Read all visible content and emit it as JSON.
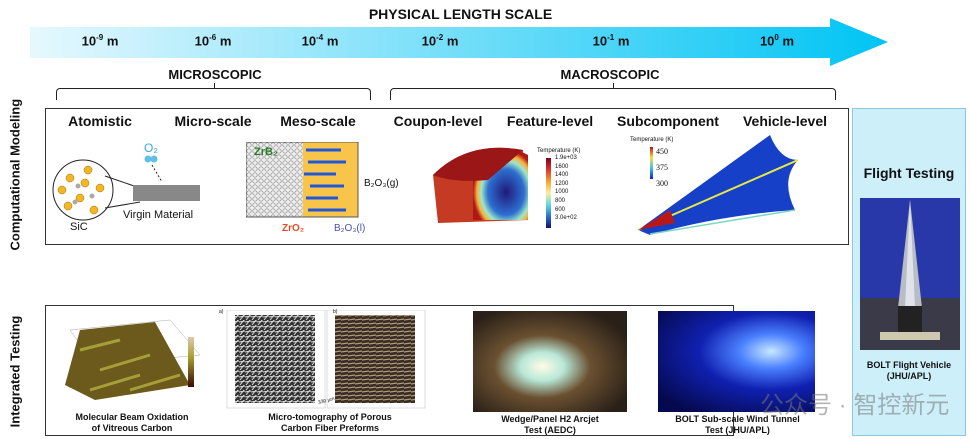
{
  "title": "PHYSICAL LENGTH SCALE",
  "scale_ticks": [
    {
      "base": "10",
      "exp": "-9",
      "unit": "m"
    },
    {
      "base": "10",
      "exp": "-6",
      "unit": "m"
    },
    {
      "base": "10",
      "exp": "-4",
      "unit": "m"
    },
    {
      "base": "10",
      "exp": "-2",
      "unit": "m"
    },
    {
      "base": "10",
      "exp": "-1",
      "unit": "m"
    },
    {
      "base": "10",
      "exp": "0",
      "unit": "m"
    }
  ],
  "ranges": {
    "micro": "MICROSCOPIC",
    "macro": "MACROSCOPIC"
  },
  "computational": {
    "label": "Computational Modeling",
    "headers": [
      "Atomistic",
      "Micro-scale",
      "Meso-scale",
      "Coupon-level",
      "Feature-level",
      "Subcomponent",
      "Vehicle-level"
    ],
    "atomistic": {
      "sic": "SiC",
      "o2": "O₂",
      "virgin": "Virgin Material"
    },
    "meso": {
      "zrb2": "ZrB₂",
      "zro2": "ZrO₂",
      "b2o3g": "B₂O₃(g)",
      "b2o3l": "B₂O₃(l)"
    },
    "coupon_legend": {
      "title": "Temperature (K)",
      "ticks": [
        "1.9e+03",
        "1600",
        "1400",
        "1200",
        "1000",
        "800",
        "600",
        "3.0e+02"
      ]
    },
    "vehicle_legend": {
      "title": "Temperature (K)",
      "ticks": [
        "450",
        "375",
        "300"
      ]
    }
  },
  "integrated": {
    "label": "Integrated Testing",
    "items": [
      {
        "caption1": "Molecular Beam Oxidation",
        "caption2": "of Vitreous Carbon"
      },
      {
        "caption1": "Micro-tomography of Porous",
        "caption2": "Carbon Fiber Preforms"
      },
      {
        "caption1": "Wedge/Panel H2 Arcjet",
        "caption2": "Test (AEDC)"
      },
      {
        "caption1": "BOLT Sub-scale Wind Tunnel",
        "caption2": "Test (JHU/APL)"
      }
    ],
    "tomo_labels": {
      "a": "a)",
      "b": "b)",
      "scale": "330 µm"
    }
  },
  "flight": {
    "title": "Flight Testing",
    "caption1": "BOLT Flight Vehicle",
    "caption2": "(JHU/APL)"
  },
  "watermark": "公众号 · 智控新元"
}
